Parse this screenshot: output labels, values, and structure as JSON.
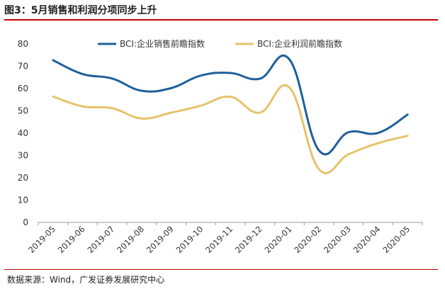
{
  "header": {
    "title": "图3：5月销售和利润分项同步上升"
  },
  "footer": {
    "source": "数据来源：Wind，广发证券发展研究中心"
  },
  "chart_data": {
    "type": "line",
    "title": "图3：5月销售和利润分项同步上升",
    "xlabel": "",
    "ylabel": "",
    "ylim": [
      0,
      80
    ],
    "yticks": [
      0,
      10,
      20,
      30,
      40,
      50,
      60,
      70,
      80
    ],
    "grid": false,
    "legend_position": "top-center",
    "categories": [
      "2019-05",
      "2019-06",
      "2019-07",
      "2019-08",
      "2019-09",
      "2019-10",
      "2019-11",
      "2019-12",
      "2020-01",
      "2020-02",
      "2020-03",
      "2020-04",
      "2020-05"
    ],
    "series": [
      {
        "name": "BCI:企业销售前瞻指数",
        "color": "#1f5f9a",
        "values": [
          72.7,
          66.5,
          64.5,
          59.0,
          60.2,
          65.8,
          67.0,
          64.4,
          73.1,
          32.3,
          40.4,
          40.1,
          48.3
        ]
      },
      {
        "name": "BCI:企业利润前瞻指数",
        "color": "#e6c36a",
        "values": [
          56.4,
          52.0,
          51.2,
          46.6,
          49.2,
          52.3,
          56.3,
          49.2,
          60.5,
          23.9,
          30.5,
          35.5,
          38.8
        ]
      }
    ]
  }
}
